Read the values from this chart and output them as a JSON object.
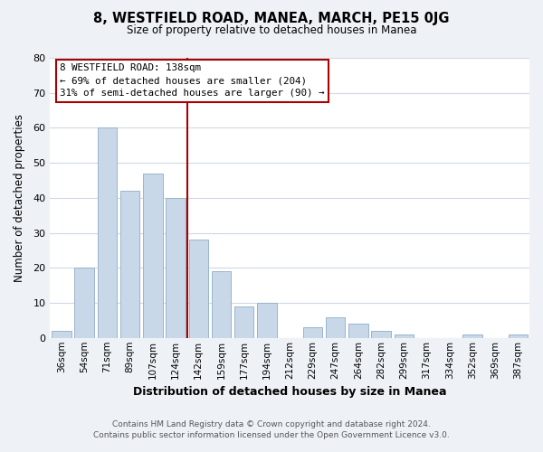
{
  "title": "8, WESTFIELD ROAD, MANEA, MARCH, PE15 0JG",
  "subtitle": "Size of property relative to detached houses in Manea",
  "xlabel": "Distribution of detached houses by size in Manea",
  "ylabel": "Number of detached properties",
  "bar_color": "#c8d8e8",
  "bar_edge_color": "#9ab4cc",
  "categories": [
    "36sqm",
    "54sqm",
    "71sqm",
    "89sqm",
    "107sqm",
    "124sqm",
    "142sqm",
    "159sqm",
    "177sqm",
    "194sqm",
    "212sqm",
    "229sqm",
    "247sqm",
    "264sqm",
    "282sqm",
    "299sqm",
    "317sqm",
    "334sqm",
    "352sqm",
    "369sqm",
    "387sqm"
  ],
  "values": [
    2,
    20,
    60,
    42,
    47,
    40,
    28,
    19,
    9,
    10,
    0,
    3,
    6,
    4,
    2,
    1,
    0,
    0,
    1,
    0,
    1
  ],
  "ylim": [
    0,
    80
  ],
  "yticks": [
    0,
    10,
    20,
    30,
    40,
    50,
    60,
    70,
    80
  ],
  "vline_index": 6,
  "vline_color": "#aa0000",
  "annotation_lines": [
    "8 WESTFIELD ROAD: 138sqm",
    "← 69% of detached houses are smaller (204)",
    "31% of semi-detached houses are larger (90) →"
  ],
  "footer1": "Contains HM Land Registry data © Crown copyright and database right 2024.",
  "footer2": "Contains public sector information licensed under the Open Government Licence v3.0.",
  "background_color": "#eef2f7",
  "plot_bg_color": "#ffffff",
  "grid_color": "#d0d8e4"
}
